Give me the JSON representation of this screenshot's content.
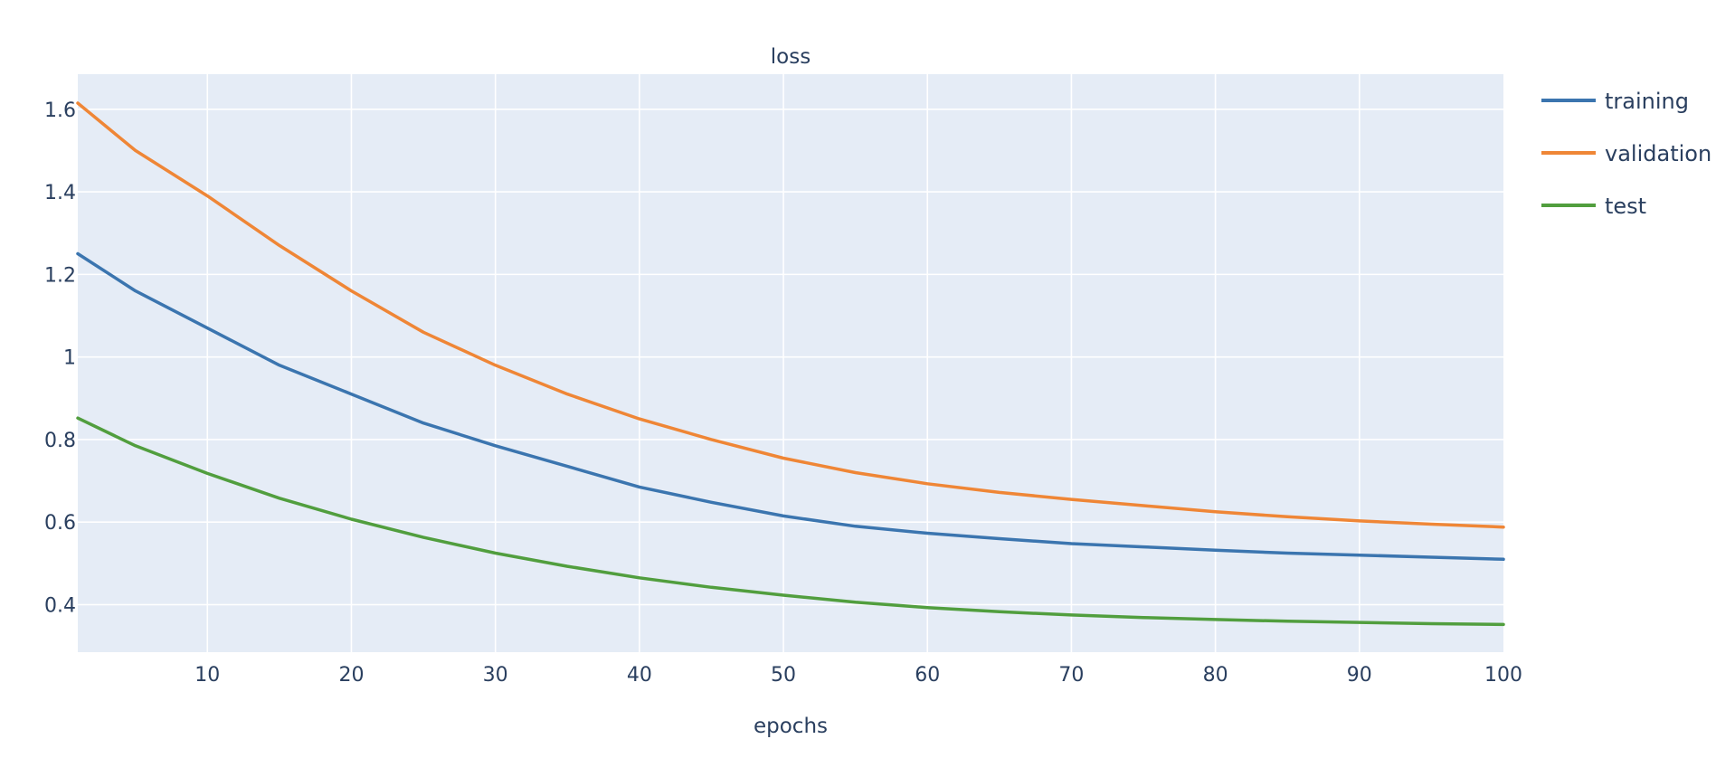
{
  "chart_data": {
    "type": "line",
    "title": "loss",
    "xlabel": "epochs",
    "ylabel": "",
    "xlim": [
      1,
      100
    ],
    "ylim": [
      0.285,
      1.685
    ],
    "xticks": [
      10,
      20,
      30,
      40,
      50,
      60,
      70,
      80,
      90,
      100
    ],
    "yticks": [
      0.4,
      0.6,
      0.8,
      1,
      1.2,
      1.4,
      1.6
    ],
    "ytick_labels": [
      "0.4",
      "0.6",
      "0.8",
      "1",
      "1.2",
      "1.4",
      "1.6"
    ],
    "xtick_labels": [
      "10",
      "20",
      "30",
      "40",
      "50",
      "60",
      "70",
      "80",
      "90",
      "100"
    ],
    "grid": true,
    "legend_position": "right",
    "plot_background": "#e5ecf6",
    "x": [
      1,
      5,
      10,
      15,
      20,
      25,
      30,
      35,
      40,
      45,
      50,
      55,
      60,
      65,
      70,
      75,
      80,
      85,
      90,
      95,
      100
    ],
    "series": [
      {
        "name": "training",
        "color": "#3b75af",
        "values": [
          1.25,
          1.16,
          1.07,
          0.98,
          0.91,
          0.84,
          0.785,
          0.735,
          0.685,
          0.648,
          0.615,
          0.59,
          0.573,
          0.56,
          0.548,
          0.54,
          0.532,
          0.525,
          0.52,
          0.515,
          0.51
        ]
      },
      {
        "name": "validation",
        "color": "#ef8636",
        "values": [
          1.615,
          1.5,
          1.39,
          1.27,
          1.16,
          1.06,
          0.98,
          0.91,
          0.85,
          0.8,
          0.755,
          0.72,
          0.693,
          0.672,
          0.655,
          0.64,
          0.625,
          0.613,
          0.603,
          0.595,
          0.588
        ]
      },
      {
        "name": "test",
        "color": "#519e3e",
        "values": [
          0.852,
          0.785,
          0.718,
          0.658,
          0.607,
          0.563,
          0.525,
          0.493,
          0.465,
          0.442,
          0.423,
          0.406,
          0.393,
          0.383,
          0.375,
          0.369,
          0.364,
          0.36,
          0.357,
          0.354,
          0.352
        ]
      }
    ]
  }
}
